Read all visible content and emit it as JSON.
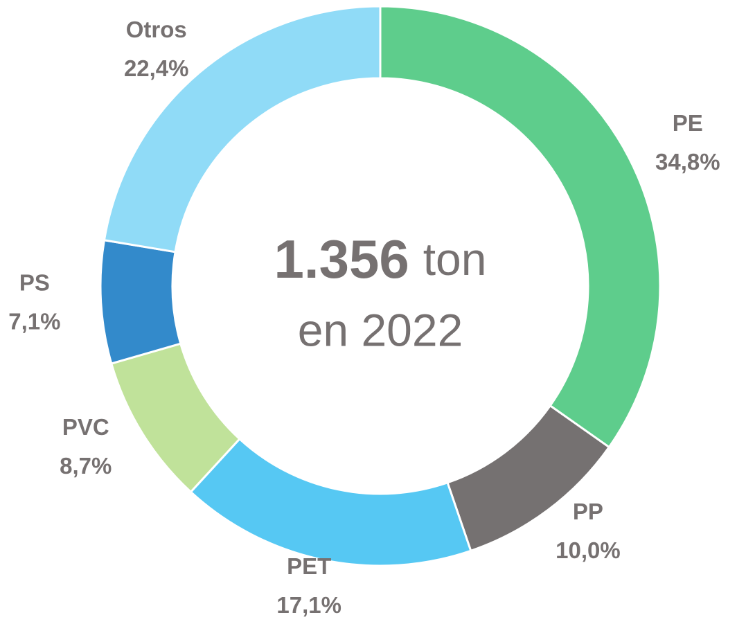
{
  "chart_data": {
    "type": "donut",
    "categories": [
      "PE",
      "PP",
      "PET",
      "PVC",
      "PS",
      "Otros"
    ],
    "values": [
      34.8,
      10.0,
      17.1,
      8.7,
      7.1,
      22.4
    ],
    "value_labels": [
      "34,8%",
      "10,0%",
      "17,1%",
      "8,7%",
      "7,1%",
      "22,4%"
    ],
    "colors": [
      "#5ecd8c",
      "#757171",
      "#56c8f3",
      "#c0e29a",
      "#338acb",
      "#90dbf7"
    ],
    "center_label": {
      "number": "1.356",
      "unit": "ton",
      "subtitle": "en 2022"
    }
  }
}
